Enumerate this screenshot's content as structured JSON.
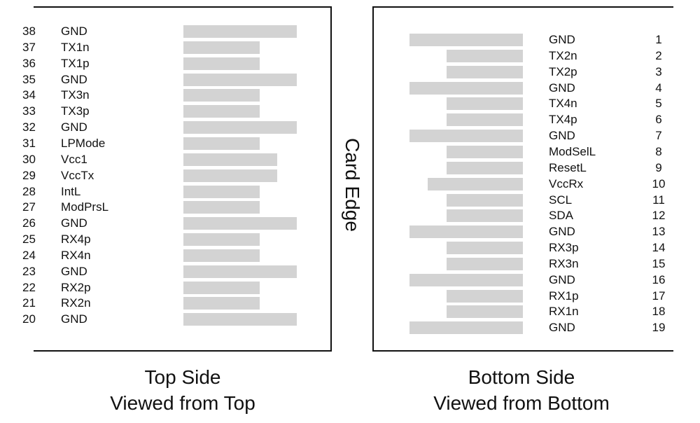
{
  "card_edge_label": "Card Edge",
  "top_side": {
    "caption_line1": "Top Side",
    "caption_line2": "Viewed from Top",
    "pins": [
      {
        "num": "38",
        "name": "GND"
      },
      {
        "num": "37",
        "name": "TX1n"
      },
      {
        "num": "36",
        "name": "TX1p"
      },
      {
        "num": "35",
        "name": "GND"
      },
      {
        "num": "34",
        "name": "TX3n"
      },
      {
        "num": "33",
        "name": "TX3p"
      },
      {
        "num": "32",
        "name": "GND"
      },
      {
        "num": "31",
        "name": "LPMode"
      },
      {
        "num": "30",
        "name": "Vcc1"
      },
      {
        "num": "29",
        "name": "VccTx"
      },
      {
        "num": "28",
        "name": "IntL"
      },
      {
        "num": "27",
        "name": "ModPrsL"
      },
      {
        "num": "26",
        "name": "GND"
      },
      {
        "num": "25",
        "name": "RX4p"
      },
      {
        "num": "24",
        "name": "RX4n"
      },
      {
        "num": "23",
        "name": "GND"
      },
      {
        "num": "22",
        "name": "RX2p"
      },
      {
        "num": "21",
        "name": "RX2n"
      },
      {
        "num": "20",
        "name": "GND"
      }
    ]
  },
  "bottom_side": {
    "caption_line1": "Bottom Side",
    "caption_line2": "Viewed from Bottom",
    "pins": [
      {
        "num": "1",
        "name": "GND"
      },
      {
        "num": "2",
        "name": "TX2n"
      },
      {
        "num": "3",
        "name": "TX2p"
      },
      {
        "num": "4",
        "name": "GND"
      },
      {
        "num": "5",
        "name": "TX4n"
      },
      {
        "num": "6",
        "name": "TX4p"
      },
      {
        "num": "7",
        "name": "GND"
      },
      {
        "num": "8",
        "name": "ModSelL"
      },
      {
        "num": "9",
        "name": "ResetL"
      },
      {
        "num": "10",
        "name": "VccRx"
      },
      {
        "num": "11",
        "name": "SCL"
      },
      {
        "num": "12",
        "name": "SDA"
      },
      {
        "num": "13",
        "name": "GND"
      },
      {
        "num": "14",
        "name": "RX3p"
      },
      {
        "num": "15",
        "name": "RX3n"
      },
      {
        "num": "16",
        "name": "GND"
      },
      {
        "num": "17",
        "name": "RX1p"
      },
      {
        "num": "18",
        "name": "RX1n"
      },
      {
        "num": "19",
        "name": "GND"
      }
    ]
  },
  "colors": {
    "pad": "#d3d3d3",
    "line": "#111111",
    "text": "#111111"
  }
}
